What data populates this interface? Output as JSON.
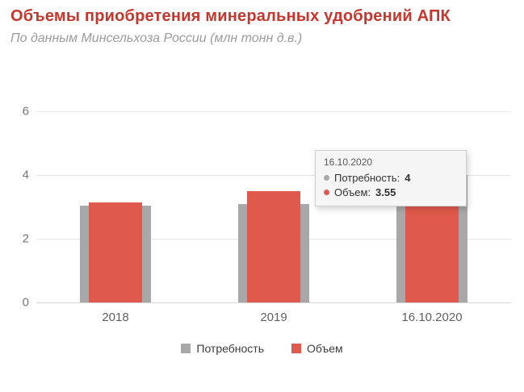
{
  "header": {
    "title": "Объемы приобретения минеральных удобрений АПК",
    "subtitle": "По данным Минсельхоза России (млн тонн д.в.)"
  },
  "chart_data": {
    "type": "bar",
    "style": "overlapped-bars",
    "categories": [
      "2018",
      "2019",
      "16.10.2020"
    ],
    "series": [
      {
        "key": "need",
        "name": "Потребность",
        "color": "#a8a8a8",
        "values": [
          3.05,
          3.1,
          4
        ]
      },
      {
        "key": "volume",
        "name": "Объем",
        "color": "#df5a4c",
        "values": [
          3.15,
          3.5,
          3.55
        ]
      }
    ],
    "ylim": [
      0,
      6
    ],
    "yticks": [
      0,
      2,
      4,
      6
    ],
    "xlabel": "",
    "ylabel": "",
    "grid": true,
    "legend_position": "bottom"
  },
  "tooltip": {
    "title": "16.10.2020",
    "rows": [
      {
        "label": "Потребность:",
        "value": "4",
        "color": "#a8a8a8"
      },
      {
        "label": "Объем:",
        "value": "3.55",
        "color": "#df5a4c"
      }
    ]
  },
  "colors": {
    "title": "#c5372d",
    "subtitle": "#9b9b9b",
    "grid": "#e7e7e7",
    "axis_label": "#757575"
  }
}
